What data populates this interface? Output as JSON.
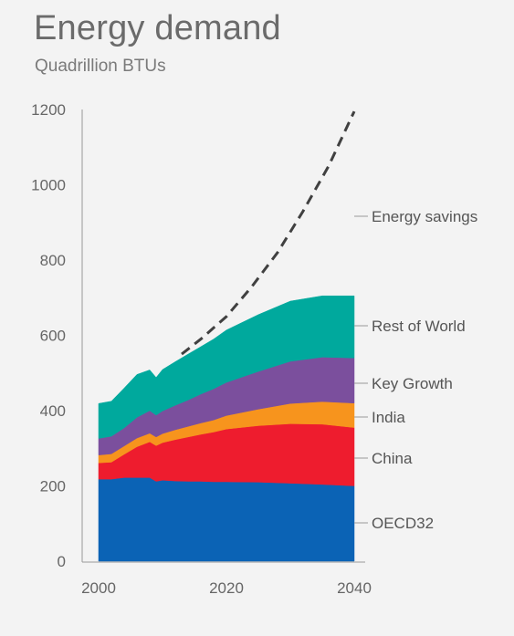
{
  "header": {
    "title": "Energy demand",
    "subtitle": "Quadrillion BTUs"
  },
  "chart_data": {
    "type": "area",
    "title": "Energy demand",
    "subtitle": "Quadrillion BTUs",
    "xlabel": "",
    "ylabel": "",
    "xlim": [
      2000,
      2040
    ],
    "ylim": [
      0,
      1200
    ],
    "x_ticks": [
      "2000",
      "2020",
      "2040"
    ],
    "y_ticks": [
      "0",
      "200",
      "400",
      "600",
      "800",
      "1000",
      "1200"
    ],
    "grid": false,
    "legend": "right (inline labels)",
    "x": [
      2000,
      2002,
      2004,
      2006,
      2008,
      2009,
      2010,
      2012,
      2014,
      2016,
      2018,
      2020,
      2025,
      2030,
      2035,
      2040
    ],
    "series": [
      {
        "name": "OECD32",
        "color": "#0b63b5",
        "values": [
          218,
          218,
          222,
          222,
          222,
          212,
          215,
          213,
          212,
          212,
          211,
          211,
          210,
          207,
          204,
          200
        ]
      },
      {
        "name": "China",
        "color": "#ee1c2e",
        "values": [
          43,
          45,
          62,
          82,
          95,
          95,
          100,
          110,
          118,
          125,
          132,
          140,
          150,
          158,
          160,
          155
        ]
      },
      {
        "name": "India",
        "color": "#f7941d",
        "values": [
          21,
          22,
          22,
          23,
          23,
          23,
          24,
          26,
          28,
          30,
          32,
          36,
          44,
          54,
          60,
          65
        ]
      },
      {
        "name": "Key Growth",
        "color": "#7b4f9d",
        "values": [
          44,
          47,
          48,
          55,
          60,
          58,
          60,
          65,
          70,
          77,
          83,
          88,
          100,
          112,
          118,
          120
        ]
      },
      {
        "name": "Rest of World",
        "color": "#00a99d",
        "values": [
          93,
          93,
          106,
          114,
          108,
          100,
          110,
          116,
          122,
          126,
          132,
          139,
          151,
          160,
          163,
          165
        ]
      }
    ],
    "energy_savings": {
      "name": "Energy savings",
      "style": "dashed",
      "color": "#404040",
      "x": [
        2013,
        2016,
        2020,
        2024,
        2028,
        2032,
        2036,
        2040
      ],
      "values": [
        550,
        590,
        650,
        730,
        820,
        930,
        1050,
        1195
      ]
    }
  }
}
